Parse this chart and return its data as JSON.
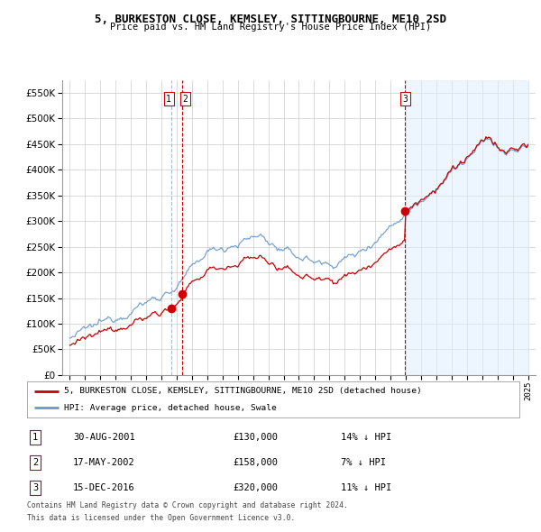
{
  "title": "5, BURKESTON CLOSE, KEMSLEY, SITTINGBOURNE, ME10 2SD",
  "subtitle": "Price paid vs. HM Land Registry's House Price Index (HPI)",
  "legend_red": "5, BURKESTON CLOSE, KEMSLEY, SITTINGBOURNE, ME10 2SD (detached house)",
  "legend_blue": "HPI: Average price, detached house, Swale",
  "transactions": [
    {
      "label": "1",
      "date_str": "30-AUG-2001",
      "price": 130000,
      "pct": "14%",
      "x_year": 2001.66
    },
    {
      "label": "2",
      "date_str": "17-MAY-2002",
      "price": 158000,
      "pct": "7%",
      "x_year": 2002.37
    },
    {
      "label": "3",
      "date_str": "15-DEC-2016",
      "price": 320000,
      "pct": "11%",
      "x_year": 2016.96
    }
  ],
  "footnote1": "Contains HM Land Registry data © Crown copyright and database right 2024.",
  "footnote2": "This data is licensed under the Open Government Licence v3.0.",
  "ylim": [
    0,
    575000
  ],
  "yticks": [
    0,
    50000,
    100000,
    150000,
    200000,
    250000,
    300000,
    350000,
    400000,
    450000,
    500000,
    550000
  ],
  "xlim": [
    1994.5,
    2025.5
  ],
  "xticks": [
    1995,
    1996,
    1997,
    1998,
    1999,
    2000,
    2001,
    2002,
    2003,
    2004,
    2005,
    2006,
    2007,
    2008,
    2009,
    2010,
    2011,
    2012,
    2013,
    2014,
    2015,
    2016,
    2017,
    2018,
    2019,
    2020,
    2021,
    2022,
    2023,
    2024,
    2025
  ],
  "red_color": "#cc0000",
  "blue_color": "#6699cc",
  "blue_fill": "#ddeeff",
  "dash_blue_color": "#aabbcc",
  "dash_red_color": "#cc0000",
  "bg_color": "#ffffff",
  "grid_color": "#cccccc"
}
